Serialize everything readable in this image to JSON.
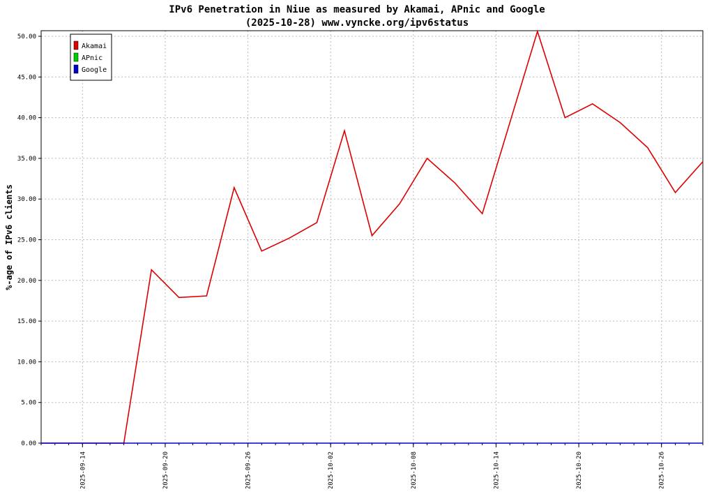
{
  "chart_data": {
    "type": "line",
    "title": "IPv6 Penetration in Niue as measured by Akamai, APnic and Google",
    "subtitle": "(2025-10-28) www.vyncke.org/ipv6status",
    "ylabel": "%-age of IPv6 clients",
    "xlabel": "",
    "ylim": [
      0,
      50
    ],
    "yticks": [
      "0.00",
      "5.00",
      "10.00",
      "15.00",
      "20.00",
      "25.00",
      "30.00",
      "35.00",
      "40.00",
      "45.00",
      "50.00"
    ],
    "xticks": [
      "2025-09-14",
      "2025-09-20",
      "2025-09-26",
      "2025-10-02",
      "2025-10-08",
      "2025-10-14",
      "2025-10-20",
      "2025-10-26"
    ],
    "grid": true,
    "legend_position": "top-left",
    "x": [
      "2025-09-14",
      "2025-09-15",
      "2025-09-16",
      "2025-09-17",
      "2025-09-18",
      "2025-09-19",
      "2025-09-20",
      "2025-09-21",
      "2025-09-22",
      "2025-09-23",
      "2025-09-24",
      "2025-09-25",
      "2025-09-26",
      "2025-09-27",
      "2025-09-28",
      "2025-09-29",
      "2025-09-30",
      "2025-10-01",
      "2025-10-02",
      "2025-10-03",
      "2025-10-04",
      "2025-10-05",
      "2025-10-06",
      "2025-10-07",
      "2025-10-08",
      "2025-10-09",
      "2025-10-10",
      "2025-10-11",
      "2025-10-12",
      "2025-10-13",
      "2025-10-14",
      "2025-10-15",
      "2025-10-16",
      "2025-10-17",
      "2025-10-18",
      "2025-10-19",
      "2025-10-20",
      "2025-10-21",
      "2025-10-22",
      "2025-10-23",
      "2025-10-24",
      "2025-10-25",
      "2025-10-26",
      "2025-10-27",
      "2025-10-28"
    ],
    "series": [
      {
        "name": "Akamai",
        "color": "#dd0000",
        "points": [
          [
            "2025-09-11",
            0
          ],
          [
            "2025-09-17",
            0
          ],
          [
            "2025-09-19",
            21.3
          ],
          [
            "2025-09-21",
            17.9
          ],
          [
            "2025-09-23",
            18.1
          ],
          [
            "2025-09-25",
            31.4
          ],
          [
            "2025-09-27",
            23.6
          ],
          [
            "2025-09-29",
            25.2
          ],
          [
            "2025-10-01",
            27.1
          ],
          [
            "2025-10-03",
            38.4
          ],
          [
            "2025-10-05",
            25.5
          ],
          [
            "2025-10-07",
            29.4
          ],
          [
            "2025-10-09",
            35.0
          ],
          [
            "2025-10-11",
            32.0
          ],
          [
            "2025-10-13",
            28.2
          ],
          [
            "2025-10-17",
            50.6
          ],
          [
            "2025-10-19",
            40.0
          ],
          [
            "2025-10-21",
            41.7
          ],
          [
            "2025-10-23",
            39.4
          ],
          [
            "2025-10-25",
            36.3
          ],
          [
            "2025-10-27",
            30.8
          ],
          [
            "2025-10-29",
            34.6
          ]
        ]
      },
      {
        "name": "APnic",
        "color": "#00cc00",
        "points": []
      },
      {
        "name": "Google",
        "color": "#0000cc",
        "points": [
          [
            "2025-09-11",
            0
          ],
          [
            "2025-10-29",
            0
          ]
        ]
      }
    ]
  }
}
